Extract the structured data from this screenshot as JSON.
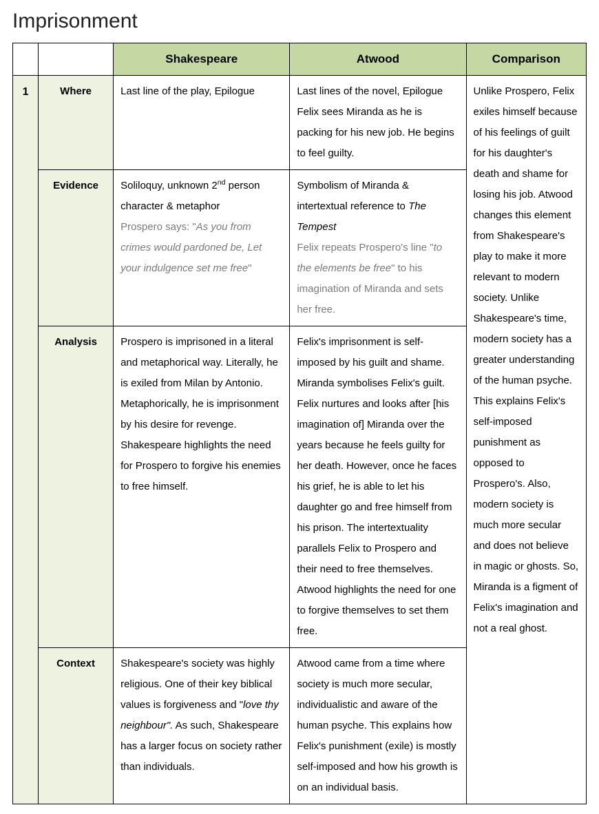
{
  "title": "Imprisonment",
  "headers": {
    "shakespeare": "Shakespeare",
    "atwood": "Atwood",
    "comparison": "Comparison"
  },
  "row_number": "1",
  "row_labels": {
    "where": "Where",
    "evidence": "Evidence",
    "analysis": "Analysis",
    "context": "Context"
  },
  "where": {
    "shakespeare": "Last line of the play, Epilogue",
    "atwood": "Last lines of the novel, Epilogue Felix sees Miranda as he is packing for his new job. He begins to feel guilty."
  },
  "evidence": {
    "shakespeare_intro_a": "Soliloquy, unknown 2",
    "shakespeare_intro_sup": "nd",
    "shakespeare_intro_b": " person character & metaphor",
    "shakespeare_quote_lead": "Prospero says: \"",
    "shakespeare_quote_ital": "As you from crimes would pardoned be, Let your indulgence set me free",
    "shakespeare_quote_tail": "\"",
    "atwood_intro_a": "Symbolism of Miranda & intertextual reference to ",
    "atwood_intro_ital": "The Tempest",
    "atwood_quote_lead": "Felix repeats Prospero's line \"",
    "atwood_quote_ital": "to the elements be free",
    "atwood_quote_tail": "\" to his imagination of Miranda and sets her free."
  },
  "analysis": {
    "shakespeare": "Prospero is imprisoned in a literal and metaphorical way. Literally, he is exiled from Milan by Antonio. Metaphorically, he is imprisonment by his desire for revenge. Shakespeare highlights the need for Prospero to forgive his enemies to free himself.",
    "atwood": "Felix's imprisonment is self-imposed by his guilt and shame. Miranda symbolises Felix's guilt. Felix nurtures and looks after [his imagination of] Miranda over the years because he feels guilty for her death. However, once he faces his grief, he is able to let his daughter go and free himself from his prison. The intertextuality parallels Felix to Prospero and their need to free themselves. Atwood highlights the need for one to forgive themselves to set them free."
  },
  "context": {
    "shakespeare_a": "Shakespeare's society was highly religious. One of their key biblical values is forgiveness and \"",
    "shakespeare_ital": "love thy neighbour\".",
    "shakespeare_b": " As such, Shakespeare has a larger focus on society rather than individuals.",
    "atwood": "Atwood came from a time where society is much more secular, individualistic and aware of the human psyche. This explains how Felix's punishment (exile) is mostly self-imposed and how his growth is on an individual basis."
  },
  "comparison": "Unlike Prospero, Felix exiles himself because of his feelings of guilt for his daughter's death and shame for losing his job. Atwood changes this element from Shakespeare's play to make it more relevant to modern society. Unlike Shakespeare's time, modern society has a greater understanding of the human psyche. This explains Felix's self-imposed punishment as opposed to Prospero's. Also, modern society is much more secular and does not believe in magic or ghosts. So, Miranda is a figment of Felix's imagination and not a real ghost."
}
